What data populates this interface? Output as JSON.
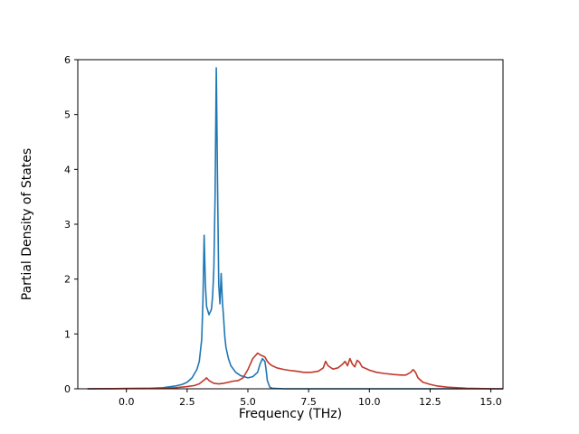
{
  "figure": {
    "background": "#ffffff",
    "xlabel": "Frequency (THz)",
    "ylabel": "Partial Density of States"
  },
  "chart_data": {
    "type": "line",
    "title": "",
    "xlabel": "Frequency (THz)",
    "ylabel": "Partial Density of States",
    "xlim": [
      -2.0,
      15.5
    ],
    "ylim": [
      0,
      6
    ],
    "grid": false,
    "legend": "none",
    "x_ticks": [
      0.0,
      2.5,
      5.0,
      7.5,
      10.0,
      12.5,
      15.0
    ],
    "x_tick_labels": [
      "0.0",
      "2.5",
      "5.0",
      "7.5",
      "10.0",
      "12.5",
      "15.0"
    ],
    "y_ticks": [
      0,
      1,
      2,
      3,
      4,
      5,
      6
    ],
    "y_tick_labels": [
      "0",
      "1",
      "2",
      "3",
      "4",
      "5",
      "6"
    ],
    "series": [
      {
        "name": "blue-pdos-curve",
        "color": "#1f77b4",
        "points": [
          [
            -1.6,
            0.0
          ],
          [
            0.0,
            0.005
          ],
          [
            1.0,
            0.01
          ],
          [
            1.5,
            0.02
          ],
          [
            2.0,
            0.05
          ],
          [
            2.3,
            0.08
          ],
          [
            2.5,
            0.12
          ],
          [
            2.7,
            0.2
          ],
          [
            2.9,
            0.35
          ],
          [
            3.0,
            0.5
          ],
          [
            3.1,
            0.9
          ],
          [
            3.15,
            1.6
          ],
          [
            3.2,
            2.8
          ],
          [
            3.25,
            1.9
          ],
          [
            3.3,
            1.5
          ],
          [
            3.4,
            1.35
          ],
          [
            3.5,
            1.45
          ],
          [
            3.55,
            1.7
          ],
          [
            3.6,
            2.2
          ],
          [
            3.65,
            3.5
          ],
          [
            3.7,
            5.85
          ],
          [
            3.75,
            3.8
          ],
          [
            3.8,
            1.9
          ],
          [
            3.85,
            1.55
          ],
          [
            3.9,
            2.1
          ],
          [
            3.95,
            1.6
          ],
          [
            4.0,
            1.3
          ],
          [
            4.05,
            0.95
          ],
          [
            4.1,
            0.75
          ],
          [
            4.2,
            0.55
          ],
          [
            4.3,
            0.42
          ],
          [
            4.5,
            0.3
          ],
          [
            4.7,
            0.24
          ],
          [
            5.0,
            0.2
          ],
          [
            5.2,
            0.22
          ],
          [
            5.4,
            0.3
          ],
          [
            5.5,
            0.45
          ],
          [
            5.6,
            0.55
          ],
          [
            5.7,
            0.5
          ],
          [
            5.75,
            0.35
          ],
          [
            5.8,
            0.15
          ],
          [
            5.9,
            0.03
          ],
          [
            6.0,
            0.01
          ],
          [
            6.5,
            0.0
          ],
          [
            15.5,
            0.0
          ]
        ]
      },
      {
        "name": "red-pdos-curve",
        "color": "#c0392b",
        "points": [
          [
            -1.6,
            0.0
          ],
          [
            1.5,
            0.01
          ],
          [
            2.0,
            0.02
          ],
          [
            2.5,
            0.04
          ],
          [
            2.8,
            0.06
          ],
          [
            3.0,
            0.09
          ],
          [
            3.2,
            0.16
          ],
          [
            3.3,
            0.2
          ],
          [
            3.4,
            0.15
          ],
          [
            3.6,
            0.1
          ],
          [
            3.8,
            0.09
          ],
          [
            4.0,
            0.1
          ],
          [
            4.2,
            0.12
          ],
          [
            4.4,
            0.14
          ],
          [
            4.6,
            0.15
          ],
          [
            4.8,
            0.2
          ],
          [
            5.0,
            0.35
          ],
          [
            5.1,
            0.45
          ],
          [
            5.2,
            0.55
          ],
          [
            5.3,
            0.6
          ],
          [
            5.4,
            0.65
          ],
          [
            5.5,
            0.62
          ],
          [
            5.6,
            0.6
          ],
          [
            5.7,
            0.58
          ],
          [
            5.8,
            0.5
          ],
          [
            5.9,
            0.45
          ],
          [
            6.0,
            0.42
          ],
          [
            6.2,
            0.38
          ],
          [
            6.5,
            0.35
          ],
          [
            6.8,
            0.33
          ],
          [
            7.0,
            0.32
          ],
          [
            7.3,
            0.3
          ],
          [
            7.6,
            0.3
          ],
          [
            7.9,
            0.32
          ],
          [
            8.1,
            0.38
          ],
          [
            8.2,
            0.5
          ],
          [
            8.3,
            0.42
          ],
          [
            8.5,
            0.36
          ],
          [
            8.7,
            0.38
          ],
          [
            8.9,
            0.45
          ],
          [
            9.0,
            0.5
          ],
          [
            9.1,
            0.42
          ],
          [
            9.2,
            0.55
          ],
          [
            9.3,
            0.45
          ],
          [
            9.4,
            0.4
          ],
          [
            9.5,
            0.52
          ],
          [
            9.6,
            0.48
          ],
          [
            9.7,
            0.4
          ],
          [
            9.9,
            0.36
          ],
          [
            10.0,
            0.34
          ],
          [
            10.3,
            0.3
          ],
          [
            10.6,
            0.28
          ],
          [
            11.0,
            0.26
          ],
          [
            11.3,
            0.25
          ],
          [
            11.5,
            0.25
          ],
          [
            11.7,
            0.3
          ],
          [
            11.8,
            0.35
          ],
          [
            11.9,
            0.3
          ],
          [
            12.0,
            0.2
          ],
          [
            12.2,
            0.12
          ],
          [
            12.5,
            0.08
          ],
          [
            12.8,
            0.05
          ],
          [
            13.2,
            0.03
          ],
          [
            13.6,
            0.02
          ],
          [
            14.0,
            0.01
          ],
          [
            14.5,
            0.005
          ],
          [
            15.0,
            0.0
          ],
          [
            15.5,
            0.0
          ]
        ]
      }
    ]
  }
}
